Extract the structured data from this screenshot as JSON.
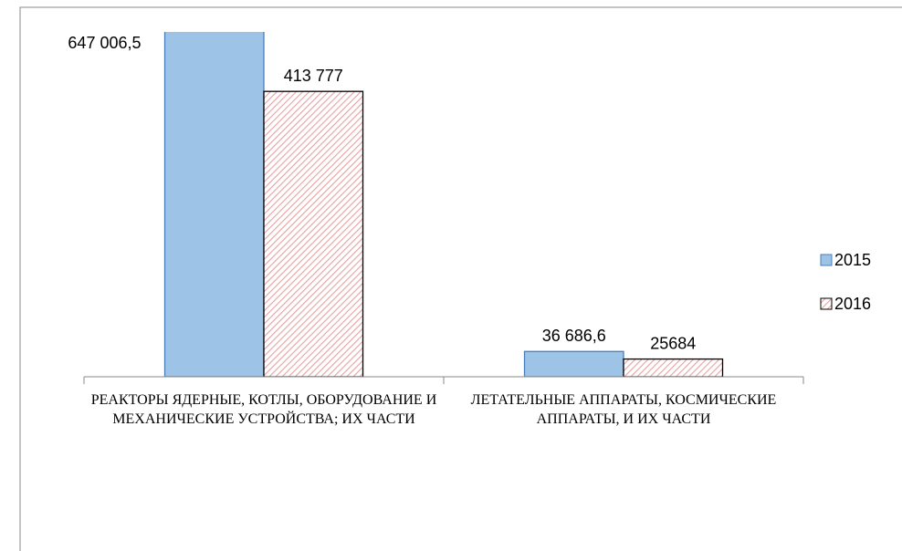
{
  "chart_data": {
    "type": "bar",
    "categories": [
      "РЕАКТОРЫ ЯДЕРНЫЕ, КОТЛЫ, ОБОРУДОВАНИЕ И МЕХАНИЧЕСКИЕ УСТРОЙСТВА; ИХ ЧАСТИ",
      "ЛЕТАТЕЛЬНЫЕ АППАРАТЫ, КОСМИЧЕСКИЕ  АППАРАТЫ, И ИХ ЧАСТИ"
    ],
    "series": [
      {
        "name": "2015",
        "color": "#9dc3e6",
        "values": [
          647006.5,
          36686.6
        ],
        "value_labels": [
          "647 006,5",
          "36 686,6"
        ]
      },
      {
        "name": "2016",
        "color": "#e8a0a0",
        "values": [
          413777,
          25684
        ],
        "value_labels": [
          "413 777",
          "25684"
        ]
      }
    ],
    "ylim": [
      0,
      500000
    ],
    "legend": "right"
  }
}
